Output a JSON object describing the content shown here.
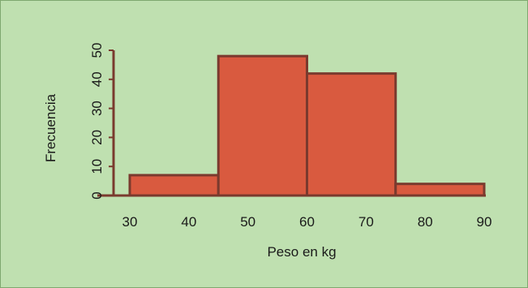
{
  "chart_data": {
    "type": "bar",
    "style": "histogram",
    "xlabel": "Peso en kg",
    "ylabel": "Frecuencia",
    "x_ticks": [
      30,
      40,
      50,
      60,
      70,
      80,
      90
    ],
    "y_ticks": [
      0,
      10,
      20,
      30,
      40,
      50
    ],
    "xlim": [
      30,
      90
    ],
    "ylim": [
      0,
      50
    ],
    "bins": [
      {
        "from": 30,
        "to": 45,
        "value": 7
      },
      {
        "from": 45,
        "to": 60,
        "value": 48
      },
      {
        "from": 60,
        "to": 75,
        "value": 42
      },
      {
        "from": 75,
        "to": 90,
        "value": 4
      }
    ],
    "colors": {
      "bar_fill": "#d95a3f",
      "bar_stroke": "#7a3a2e",
      "axis": "#7a3a2e",
      "background": "#bfe0b0",
      "border": "#7fa86f"
    },
    "grid": false
  }
}
